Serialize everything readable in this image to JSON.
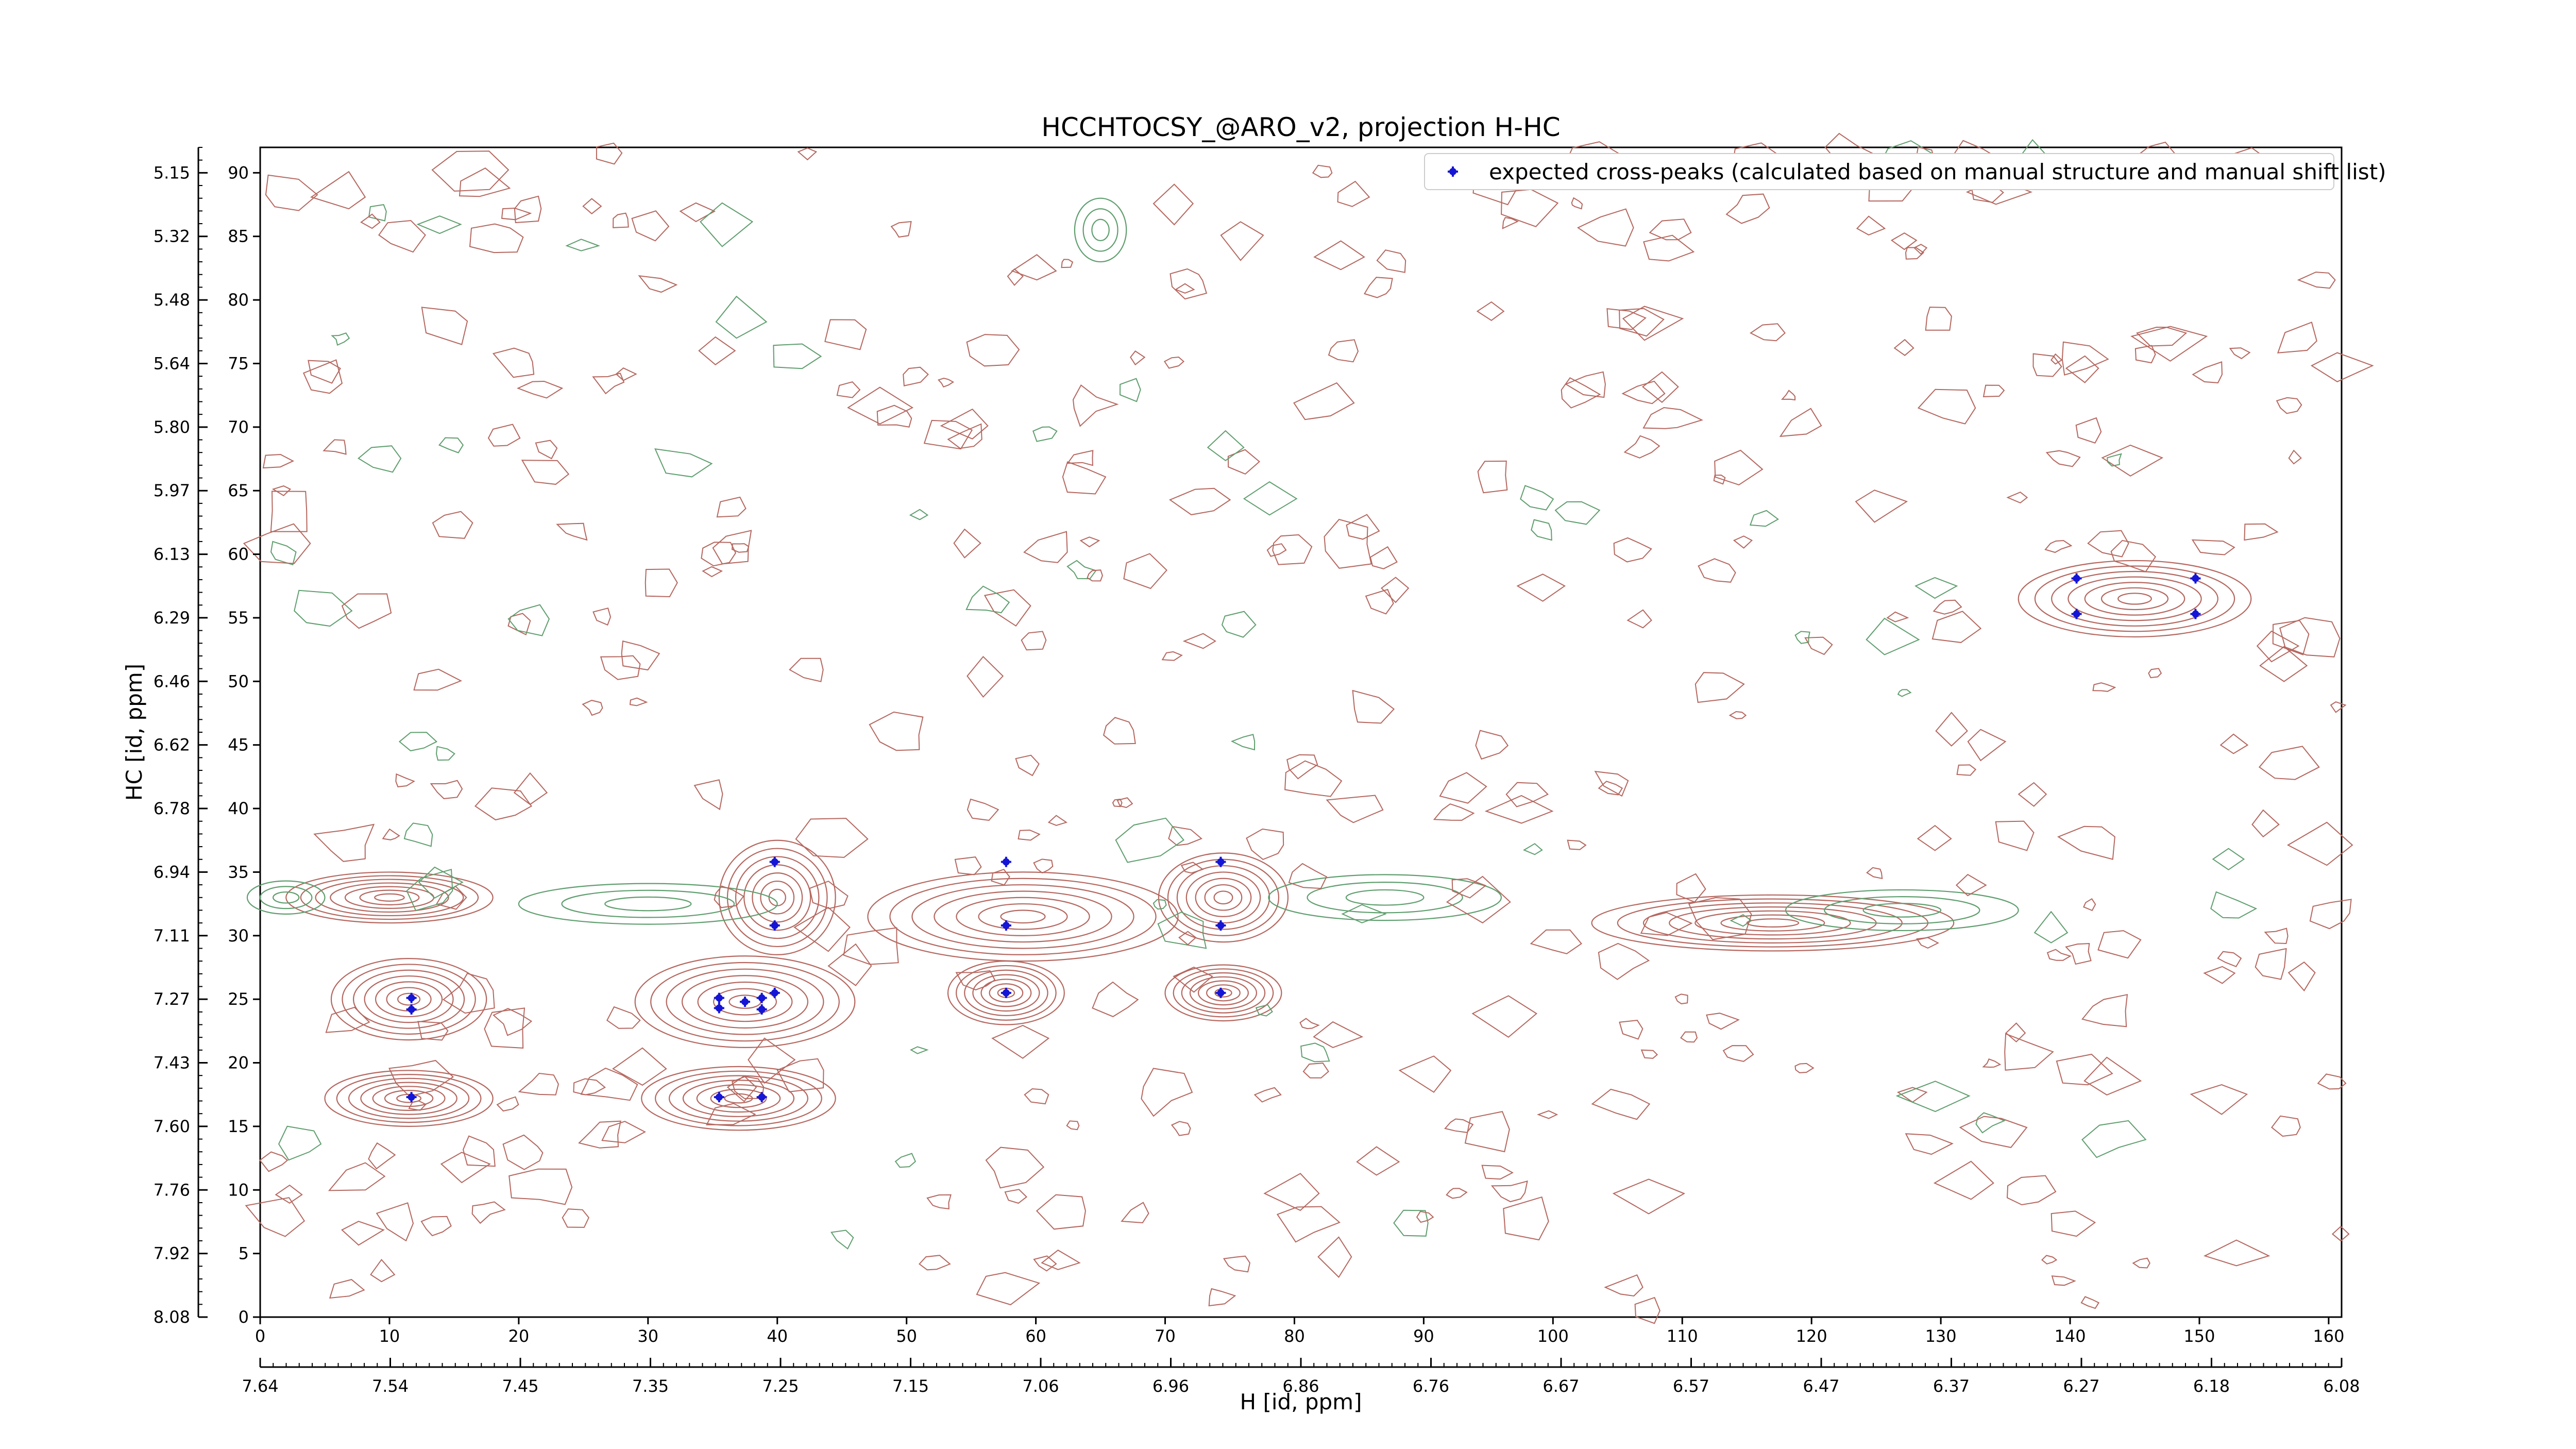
{
  "chart_data": {
    "type": "contour",
    "title": "HCCHTOCSY_@ARO_v2, projection H-HC",
    "xlabel": "H [id, ppm]",
    "ylabel": "HC [id, ppm]",
    "index_axes": {
      "x": {
        "range": [
          0,
          161
        ],
        "ticks": [
          0,
          10,
          20,
          30,
          40,
          50,
          60,
          70,
          80,
          90,
          100,
          110,
          120,
          130,
          140,
          150,
          160
        ]
      },
      "y": {
        "range": [
          0,
          92
        ],
        "ticks": [
          0,
          5,
          10,
          15,
          20,
          25,
          30,
          35,
          40,
          45,
          50,
          55,
          60,
          65,
          70,
          75,
          80,
          85,
          90
        ]
      }
    },
    "ppm_axes": {
      "x_ticks": [
        "7.64",
        "7.54",
        "7.45",
        "7.35",
        "7.25",
        "7.15",
        "7.06",
        "6.96",
        "6.86",
        "6.76",
        "6.67",
        "6.57",
        "6.47",
        "6.37",
        "6.27",
        "6.18",
        "6.08"
      ],
      "y_ticks": [
        "8.08",
        "7.92",
        "7.76",
        "7.60",
        "7.43",
        "7.27",
        "7.11",
        "6.94",
        "6.78",
        "6.62",
        "6.46",
        "6.29",
        "6.13",
        "5.97",
        "5.80",
        "5.64",
        "5.48",
        "5.32",
        "5.15"
      ]
    },
    "legend": {
      "position": "top-right",
      "entries": [
        "expected cross-peaks (calculated based on manual structure and manual shift list)"
      ]
    },
    "colors": {
      "positive_contours": "#b5675f",
      "negative_contours": "#5f9e6e",
      "expected_peaks": "#1515d6"
    },
    "series": [
      {
        "name": "expected cross-peaks (calculated based on manual structure and manual shift list)",
        "type": "scatter",
        "points": [
          [
            11.7,
            25.1
          ],
          [
            11.7,
            24.2
          ],
          [
            11.7,
            17.3
          ],
          [
            35.5,
            25.1
          ],
          [
            35.5,
            24.3
          ],
          [
            37.5,
            24.8
          ],
          [
            38.8,
            25.1
          ],
          [
            38.8,
            24.2
          ],
          [
            39.8,
            25.5
          ],
          [
            35.5,
            17.3
          ],
          [
            38.8,
            17.3
          ],
          [
            39.8,
            35.8
          ],
          [
            39.8,
            30.8
          ],
          [
            57.7,
            35.8
          ],
          [
            57.7,
            30.8
          ],
          [
            57.7,
            25.5
          ],
          [
            74.3,
            35.8
          ],
          [
            74.3,
            30.8
          ],
          [
            74.3,
            25.5
          ],
          [
            140.5,
            58.1
          ],
          [
            140.5,
            55.3
          ],
          [
            149.7,
            58.1
          ],
          [
            149.7,
            55.3
          ]
        ]
      }
    ],
    "contour_features": [
      {
        "sign": "positive",
        "cx": 11.5,
        "cy": 25.0,
        "rx": 6,
        "ry": 3.2
      },
      {
        "sign": "positive",
        "cx": 11.5,
        "cy": 17.2,
        "rx": 6.5,
        "ry": 2.2
      },
      {
        "sign": "positive",
        "cx": 37.5,
        "cy": 24.8,
        "rx": 8.5,
        "ry": 3.6
      },
      {
        "sign": "positive",
        "cx": 37.0,
        "cy": 17.2,
        "rx": 7.5,
        "ry": 2.5
      },
      {
        "sign": "positive",
        "cx": 40.0,
        "cy": 33.0,
        "rx": 4.5,
        "ry": 4.5
      },
      {
        "sign": "positive",
        "cx": 59.0,
        "cy": 31.5,
        "rx": 12,
        "ry": 3.5
      },
      {
        "sign": "positive",
        "cx": 57.7,
        "cy": 25.5,
        "rx": 4.5,
        "ry": 2.5
      },
      {
        "sign": "positive",
        "cx": 74.5,
        "cy": 25.5,
        "rx": 4.5,
        "ry": 2.2
      },
      {
        "sign": "positive",
        "cx": 74.5,
        "cy": 33.0,
        "rx": 5,
        "ry": 3.5
      },
      {
        "sign": "positive",
        "cx": 10.0,
        "cy": 33.0,
        "rx": 8,
        "ry": 2.0
      },
      {
        "sign": "positive",
        "cx": 117.0,
        "cy": 31.0,
        "rx": 14,
        "ry": 2.2
      },
      {
        "sign": "positive",
        "cx": 145.0,
        "cy": 56.5,
        "rx": 9,
        "ry": 3.0
      },
      {
        "sign": "negative",
        "cx": 30.0,
        "cy": 32.5,
        "rx": 10,
        "ry": 1.6
      },
      {
        "sign": "negative",
        "cx": 87.0,
        "cy": 33.0,
        "rx": 9,
        "ry": 1.8
      },
      {
        "sign": "negative",
        "cx": 127.0,
        "cy": 32.0,
        "rx": 9,
        "ry": 1.6
      },
      {
        "sign": "negative",
        "cx": 2.0,
        "cy": 33.0,
        "rx": 3,
        "ry": 1.3
      },
      {
        "sign": "negative",
        "cx": 65.0,
        "cy": 85.5,
        "rx": 2,
        "ry": 2.5
      }
    ]
  }
}
